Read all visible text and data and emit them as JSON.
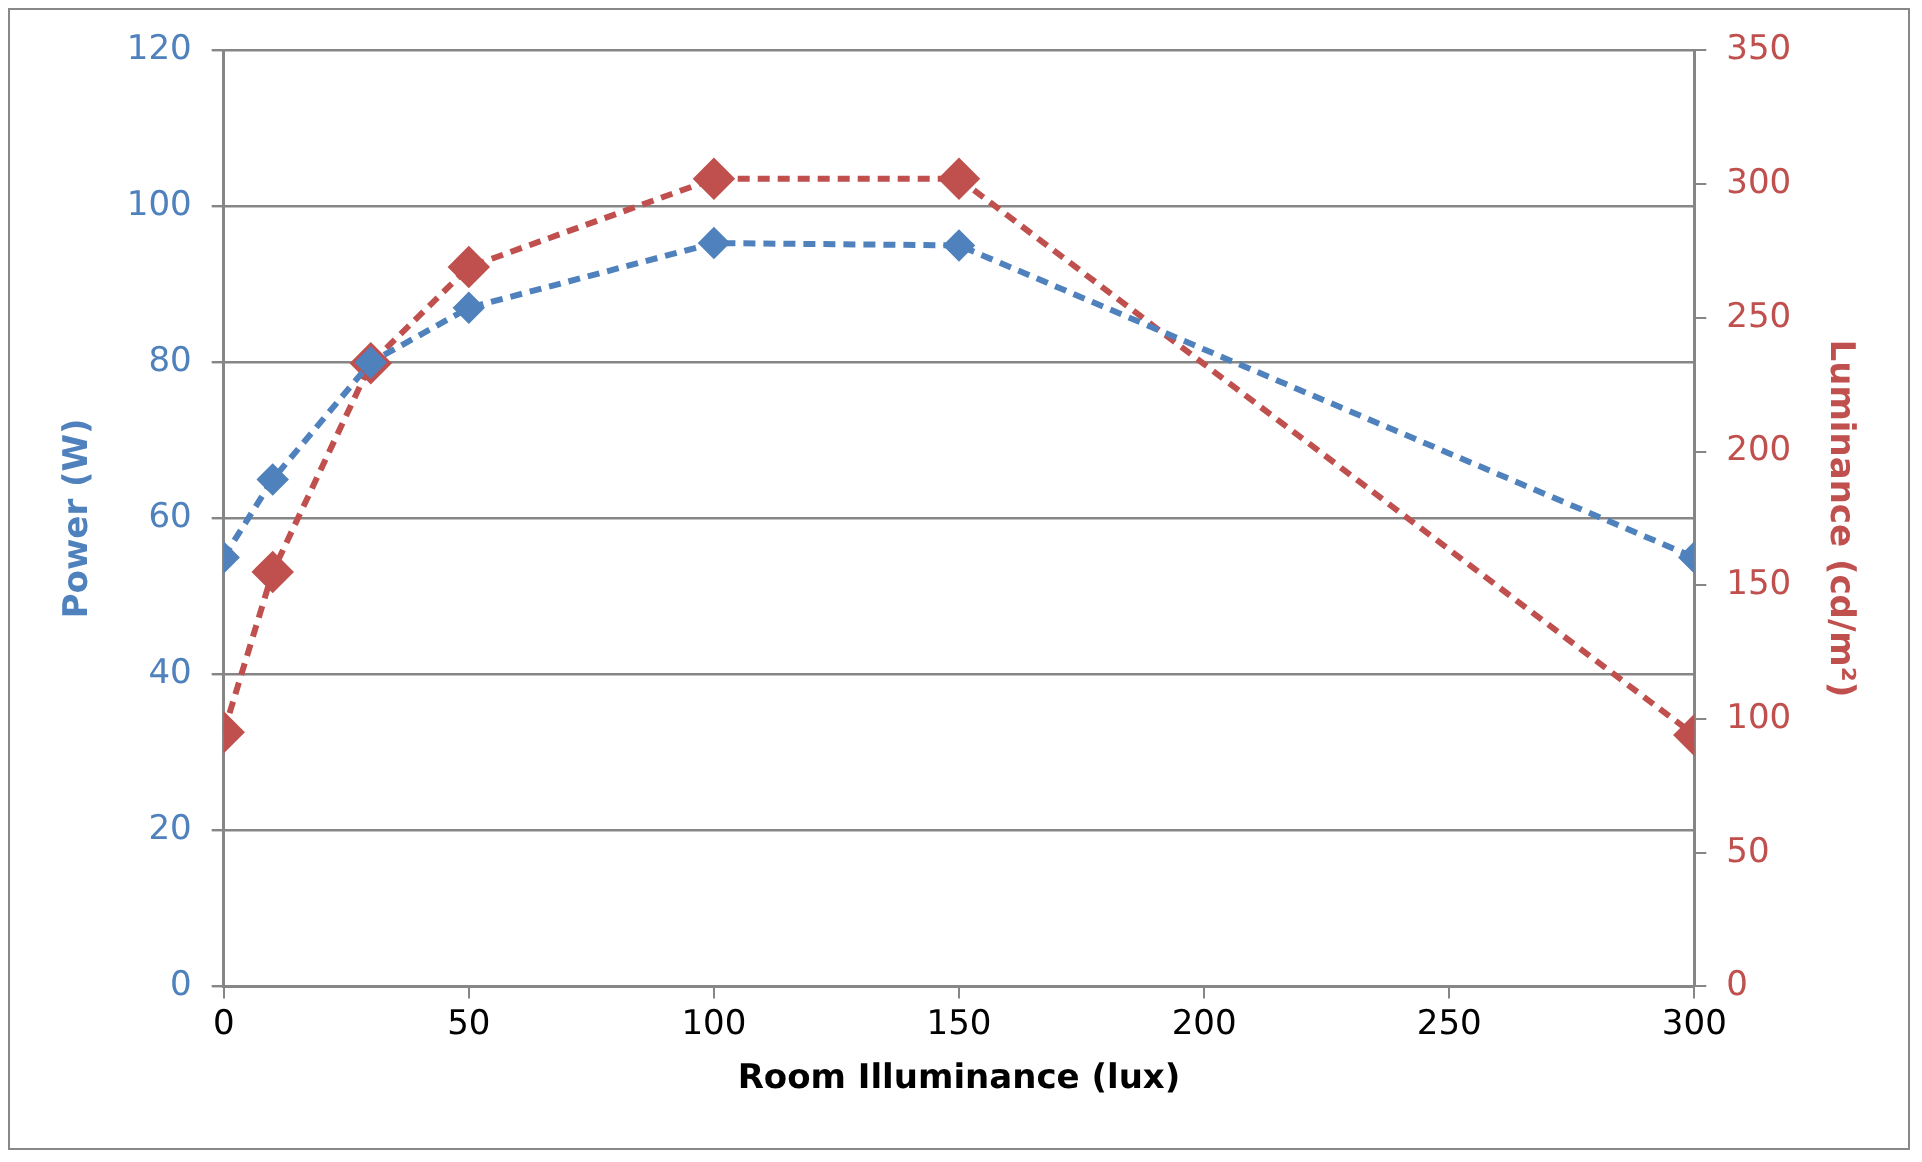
{
  "chart_data": {
    "type": "line",
    "xlabel": "Room Illuminance (lux)",
    "ylabel": "Power (W)",
    "y2label": "Luminance (cd/m²)",
    "x": [
      0,
      10,
      30,
      50,
      100,
      150,
      300
    ],
    "series": [
      {
        "color": "#4f81bd",
        "values": [
          55,
          65,
          80,
          87,
          95.3,
          95,
          55
        ]
      },
      {
        "color": "#c0504d",
        "axis": "y2",
        "values": [
          95,
          155,
          233,
          269,
          302,
          302,
          94
        ]
      }
    ],
    "xlim": [
      0,
      300
    ],
    "xticks": [
      0,
      50,
      100,
      150,
      200,
      250,
      300
    ],
    "ylim": [
      0,
      120
    ],
    "yticks": [
      0,
      20,
      40,
      60,
      80,
      100,
      120
    ],
    "y2lim": [
      0,
      350
    ],
    "y2ticks": [
      0,
      50,
      100,
      150,
      200,
      250,
      300,
      350
    ],
    "grid": "y",
    "legend": false,
    "marker": "diamond",
    "line_style": "dashed"
  }
}
